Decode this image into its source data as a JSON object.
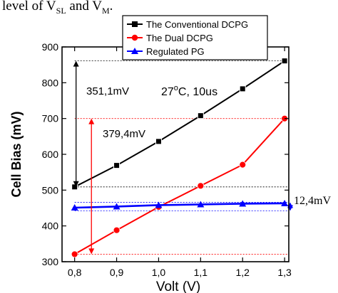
{
  "caption": {
    "before": "level of V",
    "sub1": "SL",
    "middle": " and V",
    "sub2": "M",
    "after": "."
  },
  "chart_data": {
    "type": "line",
    "xlabel": "Volt (V)",
    "ylabel": "Cell Bias (mV)",
    "xlim": [
      0.77,
      1.31
    ],
    "ylim": [
      300,
      900
    ],
    "x_ticks": [
      "0,8",
      "0,9",
      "1,0",
      "1,1",
      "1,2",
      "1,3"
    ],
    "y_ticks": [
      "300",
      "400",
      "500",
      "600",
      "700",
      "800",
      "900"
    ],
    "x": [
      0.8,
      0.9,
      1.0,
      1.1,
      1.2,
      1.3
    ],
    "series": [
      {
        "name": "The Conventional DCPG",
        "color": "#000000",
        "marker": "square",
        "values": [
          509,
          569,
          636,
          708,
          783,
          861
        ]
      },
      {
        "name": "The Dual DCPG",
        "color": "#ff0000",
        "marker": "circle",
        "values": [
          321,
          388,
          453,
          512,
          571,
          700
        ]
      },
      {
        "name": "Regulated PG",
        "color": "#0000ff",
        "marker": "triangle",
        "values": [
          451,
          454,
          458,
          460,
          462,
          463
        ]
      }
    ],
    "legend_position": "top",
    "annotations": {
      "condition": "27",
      "condition_sup": "o",
      "condition_rest": "C, 10us",
      "diff_conventional": "351,1mV",
      "diff_dual": "379,4mV",
      "diff_regulated": "12,4mV"
    },
    "grid": false
  }
}
